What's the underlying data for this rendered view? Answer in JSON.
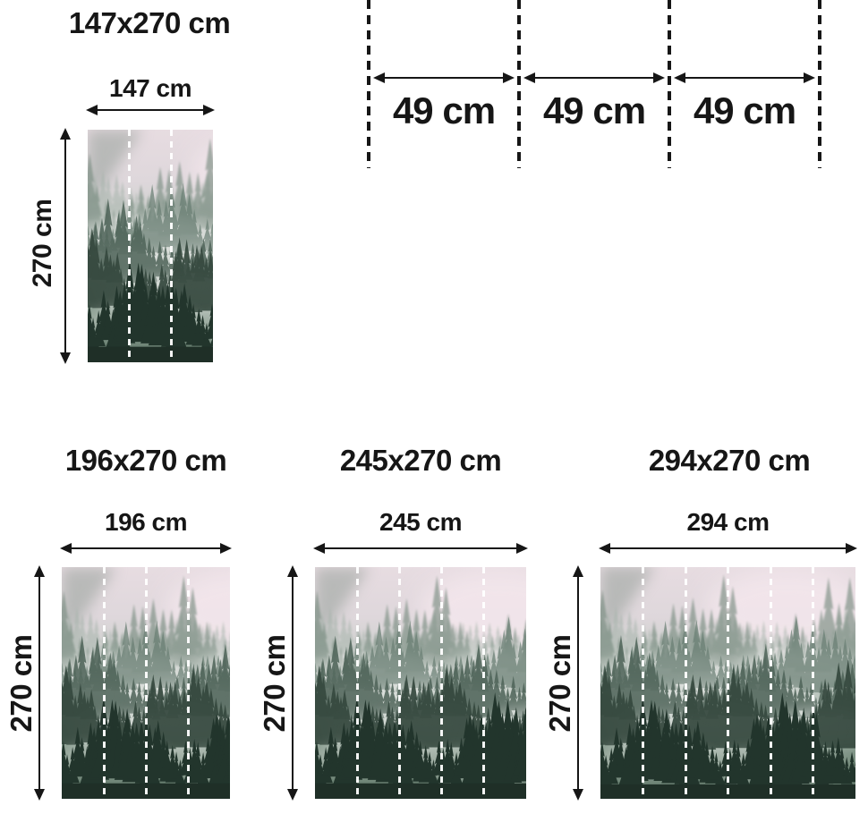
{
  "page": {
    "background": "#ffffff",
    "text_color": "#161616",
    "description": "Wall mural size guide diagram"
  },
  "panel_diagram": {
    "panel_count": 3,
    "segments": [
      {
        "label": "49 cm"
      },
      {
        "label": "49 cm"
      },
      {
        "label": "49 cm"
      }
    ]
  },
  "variants": [
    {
      "title": "147x270 cm",
      "width_label": "147 cm",
      "height_label": "270 cm",
      "panels": 3
    },
    {
      "title": "196x270 cm",
      "width_label": "196 cm",
      "height_label": "270 cm",
      "panels": 4
    },
    {
      "title": "245x270 cm",
      "width_label": "245 cm",
      "height_label": "270 cm",
      "panels": 5
    },
    {
      "title": "294x270 cm",
      "width_label": "294 cm",
      "height_label": "270 cm",
      "panels": 6
    }
  ],
  "image": {
    "subject": "foggy pine forest photograph",
    "seam_line_color": "#ffffff",
    "cut_line_color": "#161616",
    "sky_color": "#e7dce1",
    "tree_dark_color": "#22352c"
  }
}
